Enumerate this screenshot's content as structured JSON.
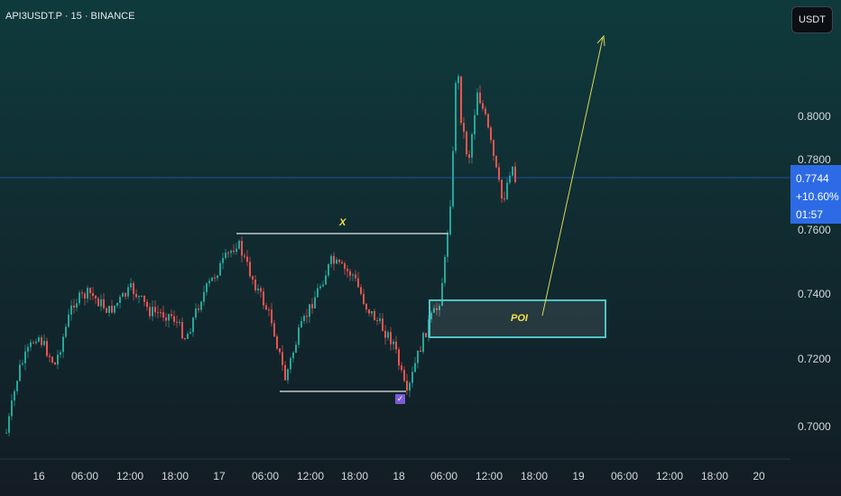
{
  "header": {
    "symbol": "API3USDT.P · 15 · BINANCE"
  },
  "currency_button": {
    "label": "USDT"
  },
  "price_axis": {
    "labels": [
      "0.8000",
      "0.7800",
      "0.7600",
      "0.7400",
      "0.7200",
      "0.7000"
    ]
  },
  "time_axis": {
    "labels": [
      "16",
      "06:00",
      "12:00",
      "18:00",
      "17",
      "06:00",
      "12:00",
      "18:00",
      "18",
      "06:00",
      "12:00",
      "18:00",
      "19",
      "06:00",
      "12:00",
      "18:00",
      "20"
    ]
  },
  "current_price": {
    "price": "0.7744",
    "change": "+10.60%",
    "countdown": "01:57"
  },
  "annotations": {
    "range_label": "X",
    "zone_label": "POI",
    "check_mark": "✓"
  },
  "colors": {
    "up": "#26a69a",
    "down": "#ef5350",
    "zone_border": "#4fc3c3",
    "arrow": "#d9d65a",
    "level_line": "#e8e8e8",
    "price_line": "#2d6be6"
  }
}
